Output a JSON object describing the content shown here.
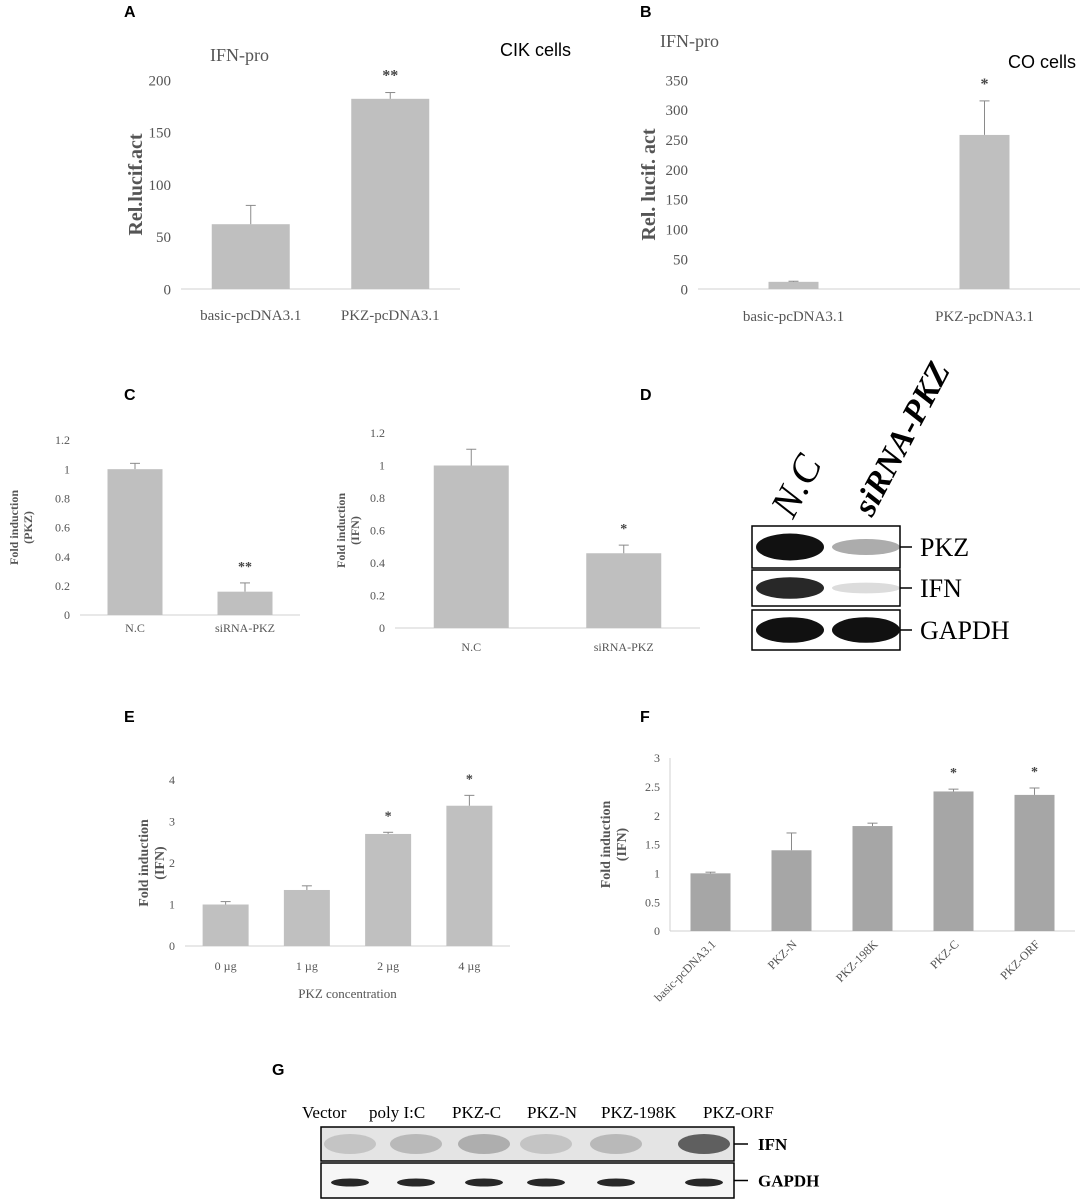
{
  "panel_labels": {
    "A": "A",
    "B": "B",
    "C": "C",
    "D": "D",
    "E": "E",
    "F": "F",
    "G": "G"
  },
  "chart_data": [
    {
      "id": "A",
      "type": "bar",
      "title": "IFN-pro",
      "annotation": "CIK cells",
      "ylabel": "Rel.lucif.act",
      "xlabel": "",
      "categories": [
        "basic-pcDNA3.1",
        "PKZ-pcDNA3.1"
      ],
      "values": [
        62,
        182
      ],
      "errors": [
        18,
        6
      ],
      "significance": [
        "",
        "**"
      ],
      "ylim": [
        0,
        200
      ],
      "yticks": [
        "0",
        "50",
        "100",
        "150",
        "200"
      ],
      "color": "#bfbfbf"
    },
    {
      "id": "B",
      "type": "bar",
      "title": "IFN-pro",
      "annotation": "CO cells",
      "ylabel": "Rel. lucif. act",
      "xlabel": "",
      "categories": [
        "basic-pcDNA3.1",
        "PKZ-pcDNA3.1"
      ],
      "values": [
        12,
        258
      ],
      "errors": [
        1,
        57
      ],
      "significance": [
        "",
        "*"
      ],
      "ylim": [
        0,
        350
      ],
      "yticks": [
        "0",
        "50",
        "100",
        "150",
        "200",
        "250",
        "300",
        "350"
      ],
      "color": "#bfbfbf"
    },
    {
      "id": "C1",
      "type": "bar",
      "ylabel_lines": [
        "Fold induction",
        "(PKZ)"
      ],
      "xlabel": "",
      "categories": [
        "N.C",
        "siRNA-PKZ"
      ],
      "values": [
        1.0,
        0.16
      ],
      "errors": [
        0.04,
        0.06
      ],
      "significance": [
        "",
        "**"
      ],
      "ylim": [
        0,
        1.2
      ],
      "yticks": [
        "0",
        "0.2",
        "0.4",
        "0.6",
        "0.8",
        "1",
        "1.2"
      ],
      "color": "#bfbfbf"
    },
    {
      "id": "C2",
      "type": "bar",
      "ylabel_lines": [
        "Fold induction",
        "(IFN)"
      ],
      "xlabel": "",
      "categories": [
        "N.C",
        "siRNA-PKZ"
      ],
      "values": [
        1.0,
        0.46
      ],
      "errors": [
        0.1,
        0.05
      ],
      "significance": [
        "",
        "*"
      ],
      "ylim": [
        0,
        1.2
      ],
      "yticks": [
        "0",
        "0.2",
        "0.4",
        "0.6",
        "0.8",
        "1",
        "1.2"
      ],
      "color": "#bfbfbf"
    },
    {
      "id": "E",
      "type": "bar",
      "ylabel_lines": [
        "Fold induction",
        "(IFN)"
      ],
      "xlabel": "PKZ concentration",
      "categories": [
        "0 µg",
        "1 µg",
        "2 µg",
        "4 µg"
      ],
      "values": [
        1.0,
        1.35,
        2.7,
        3.38
      ],
      "errors": [
        0.07,
        0.1,
        0.04,
        0.25
      ],
      "significance": [
        "",
        "",
        "*",
        "*"
      ],
      "ylim": [
        0,
        4
      ],
      "yticks": [
        "0",
        "1",
        "2",
        "3",
        "4"
      ],
      "color": "#c0c0c0"
    },
    {
      "id": "F",
      "type": "bar",
      "ylabel_lines": [
        "Fold induction",
        "(IFN)"
      ],
      "xlabel": "",
      "categories": [
        "basic-pcDNA3.1",
        "PKZ-N",
        "PKZ-198K",
        "PKZ-C",
        "PKZ-ORF"
      ],
      "values": [
        1.0,
        1.4,
        1.82,
        2.42,
        2.36
      ],
      "errors": [
        0.02,
        0.3,
        0.05,
        0.04,
        0.12
      ],
      "significance": [
        "",
        "",
        "",
        "*",
        "*"
      ],
      "ylim": [
        0,
        3
      ],
      "yticks": [
        "0",
        "0.5",
        "1",
        "1.5",
        "2",
        "2.5",
        "3"
      ],
      "color": "#a6a6a6"
    }
  ],
  "blot_D": {
    "lanes": [
      "N.C",
      "siRNA-PKZ"
    ],
    "bands": [
      {
        "label": "PKZ",
        "intensity": [
          1.0,
          0.35
        ]
      },
      {
        "label": "IFN",
        "intensity": [
          0.9,
          0.15
        ]
      },
      {
        "label": "GAPDH",
        "intensity": [
          1.0,
          1.0
        ]
      }
    ]
  },
  "blot_G": {
    "lanes": [
      "Vector",
      "poly I:C",
      "PKZ-C",
      "PKZ-N",
      "PKZ-198K",
      "PKZ-ORF"
    ],
    "bands": [
      {
        "label": "IFN"
      },
      {
        "label": "GAPDH"
      }
    ]
  }
}
